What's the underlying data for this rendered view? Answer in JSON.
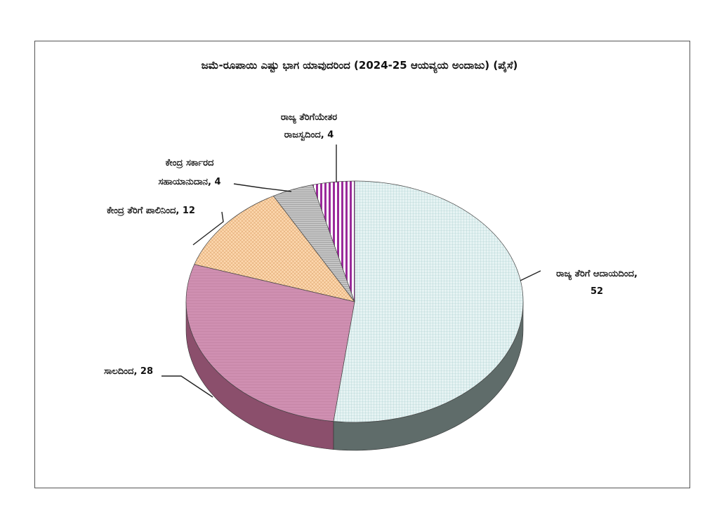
{
  "chart_data": {
    "type": "pie",
    "title": "ಜಮೆ-ರೂಪಾಯಿ ಎಷ್ಟು ಭಾಗ ಯಾವುದರಿಂದ (2024-25 ಆಯವ್ಯಯ ಅಂದಾಜು)   (ಪೈಸೆ)",
    "slices": [
      {
        "label": "ರಾಜ್ಯ ತೆರಿಗೆ ಆದಾಯದಿಂದ,",
        "value_text": "52",
        "value": 52,
        "color": "#d8ecec",
        "side_color": "#5f6c6a"
      },
      {
        "label": "ಸಾಲದಿಂದ, 28",
        "value_text": "",
        "value": 28,
        "color": "#c98aab",
        "side_color": "#8b4f6c"
      },
      {
        "label": "ಕೇಂದ್ರ ತೆರಿಗೆ ಪಾಲಿನಿಂದ, 12",
        "value_text": "",
        "value": 12,
        "color": "#fcd3a6",
        "side_color": "#b88c5e"
      },
      {
        "label": "ಕೇಂದ್ರ ಸರ್ಕಾರದ",
        "value_text": "ಸಹಾಯಾನುದಾನ, 4",
        "value": 4,
        "color": "#b5b5b5",
        "side_color": "#6e6e6e"
      },
      {
        "label": "ರಾಜ್ಯ ತೆರಿಗೆಯೇತರ",
        "value_text": "ರಾಜಸ್ವದಿಂದ, 4",
        "value": 4,
        "color": "#9a2a9a",
        "side_color": "#5a1a5a"
      }
    ]
  }
}
